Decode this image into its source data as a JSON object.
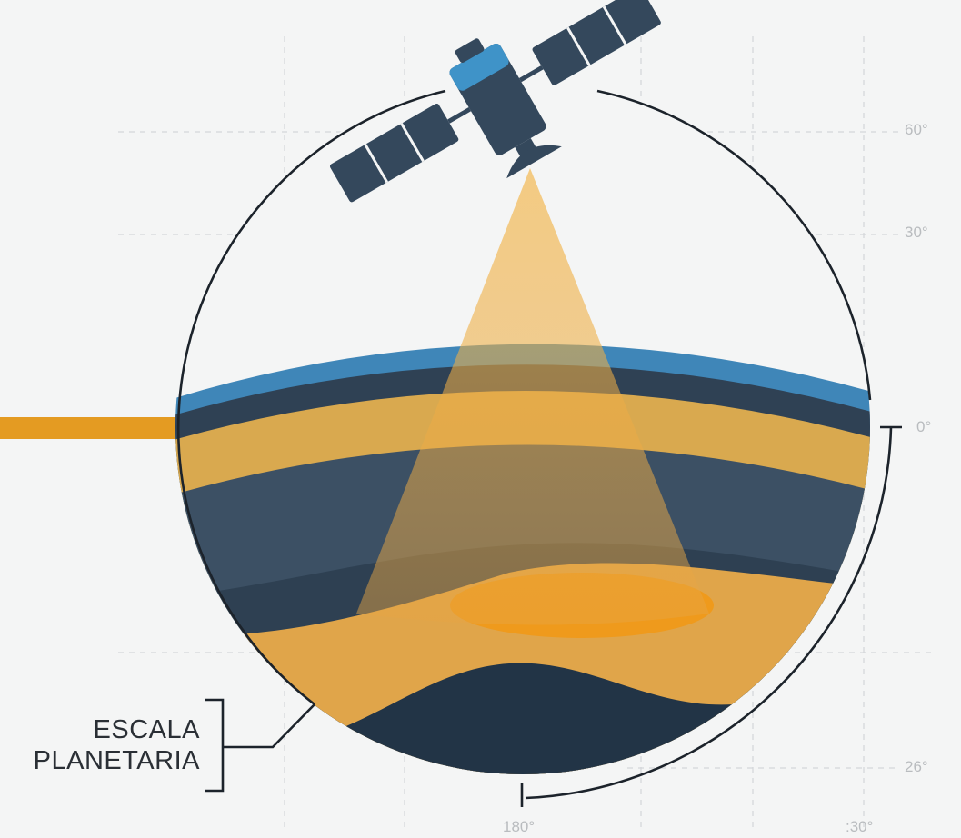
{
  "caption": {
    "line1": "ESCALA",
    "line2": "PLANETARIA"
  },
  "grid_labels": {
    "lat_60": "60°",
    "lat_30": "30°",
    "lat_0": "0°",
    "lat_bottom": "26°",
    "lon_180": "180°",
    "lon_right": ":30°"
  },
  "colors": {
    "background": "#f4f5f5",
    "ocean_blue": "#3f86b8",
    "dark_layer": "#2f4154",
    "mid_layer": "#3c5064",
    "deep_layer": "#223446",
    "amber_band": "#d9a94f",
    "orange_core": "#ef9a1c",
    "beam": "#f0b24a",
    "satellite_body": "#34485c",
    "satellite_top": "#3f93c8",
    "outline": "#1c232b"
  },
  "icons": {
    "satellite": "satellite-icon",
    "scan_beam": "sensor-beam"
  }
}
